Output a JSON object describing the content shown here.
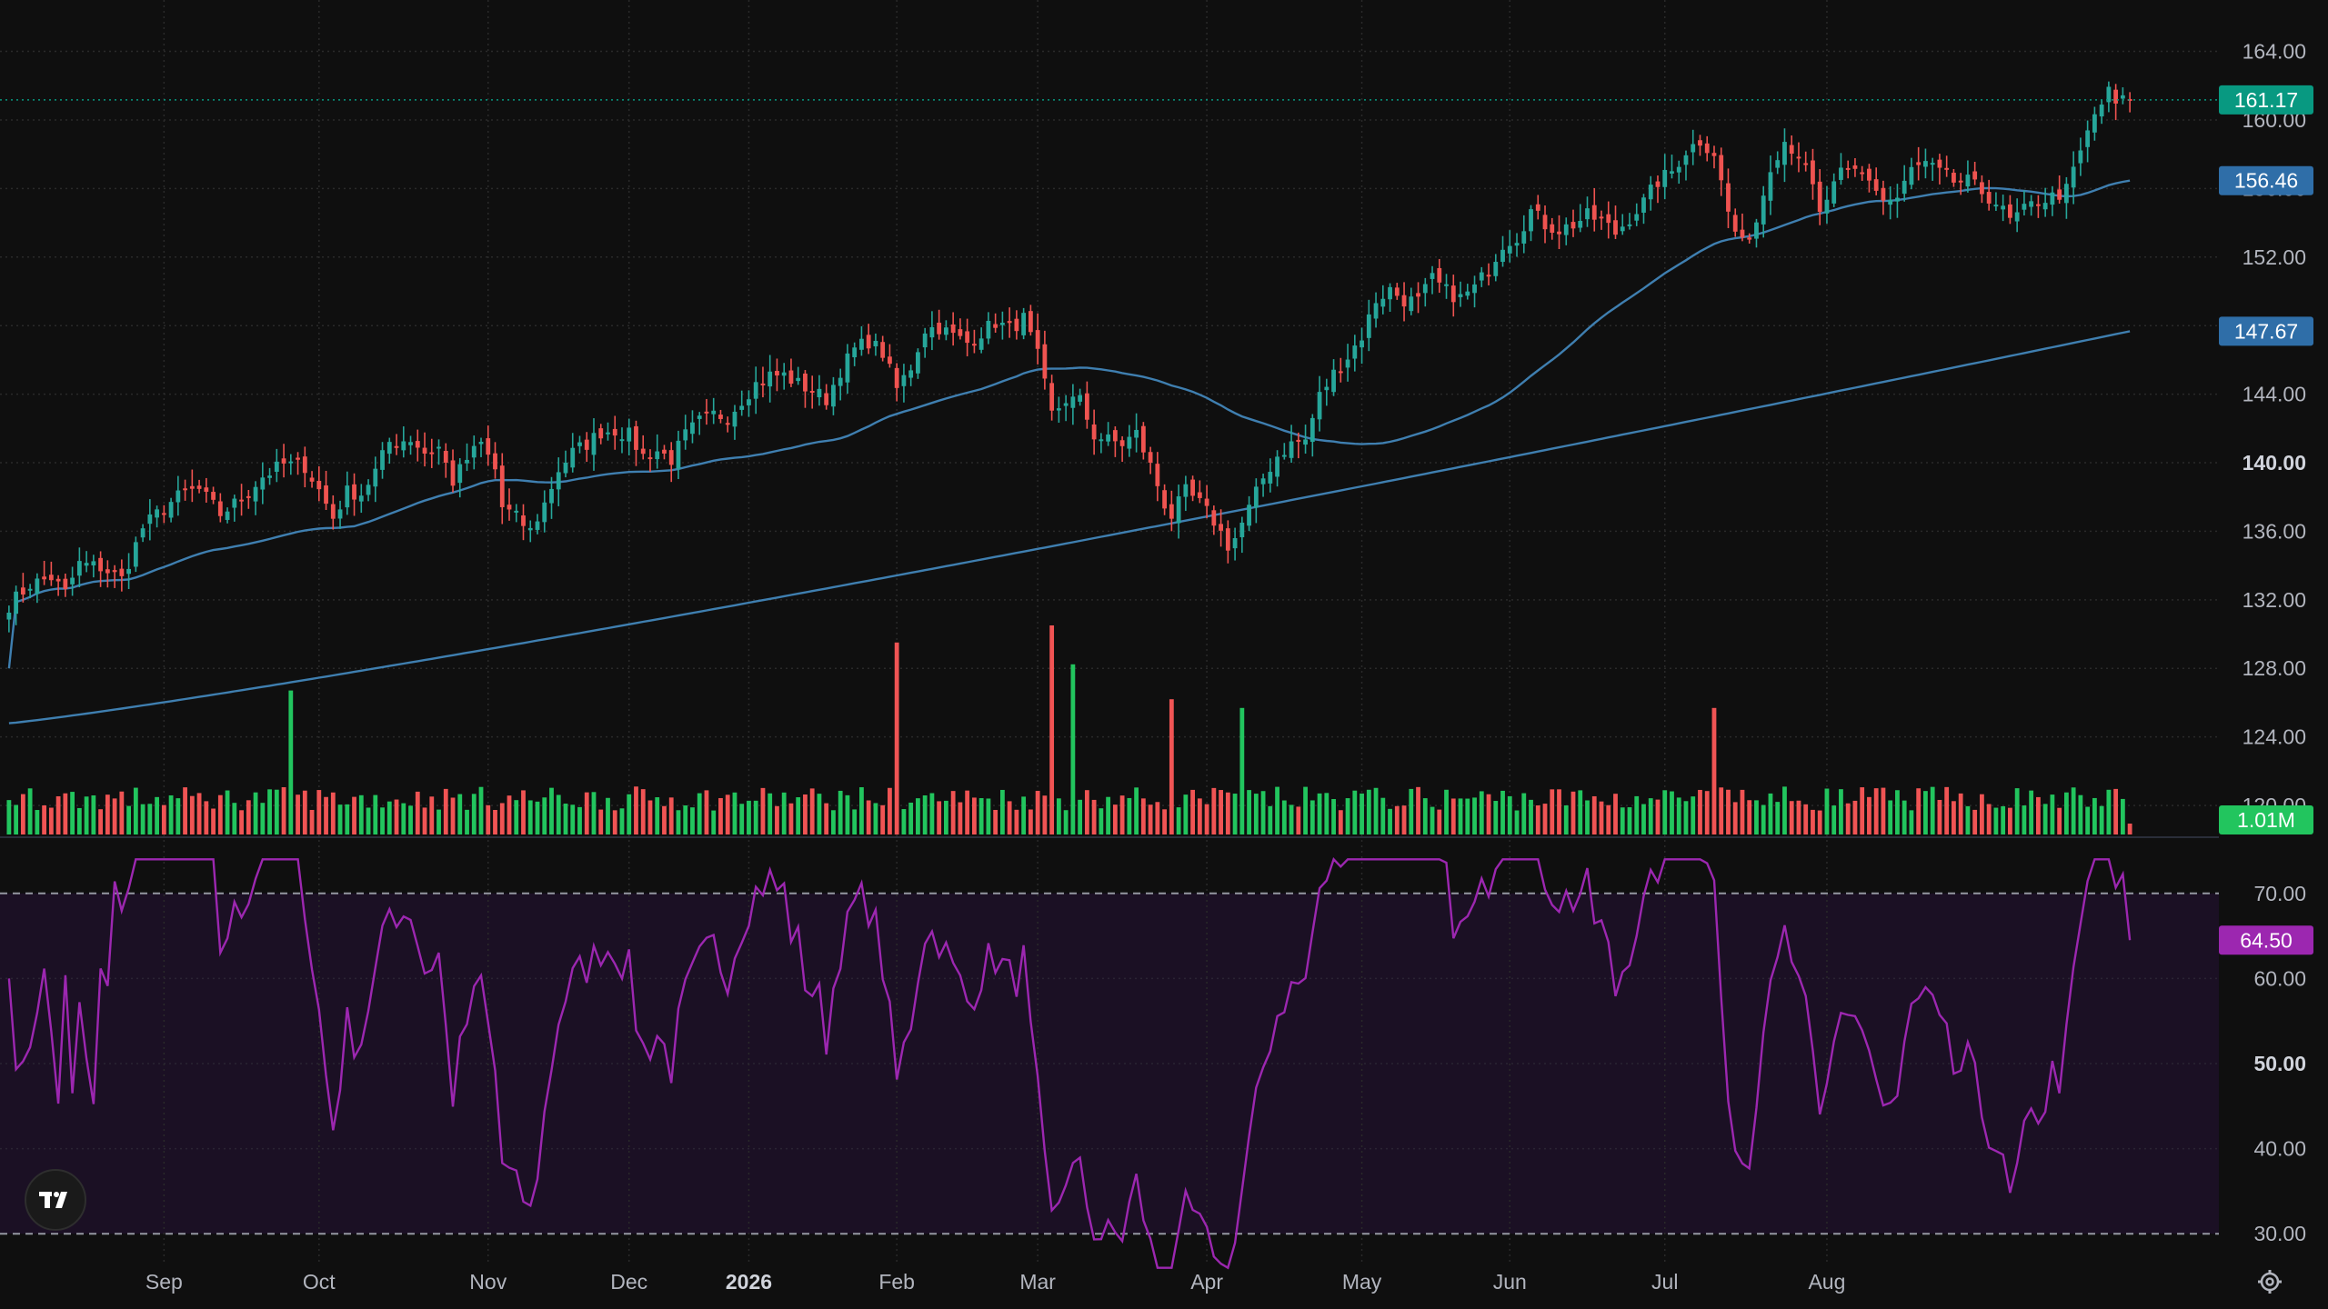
{
  "colors": {
    "background": "#0f0f0f",
    "grid": "#2a2a2a",
    "up": "#26a69a",
    "down": "#ef5350",
    "vol_up": "#22c55e",
    "vol_down": "#f05454",
    "ma": "#3f7fb0",
    "rsi_line": "#9c27b0",
    "rsi_band": "#1b1024",
    "last_price_tag": "#089981",
    "ma_tag": "#2f6ea8",
    "vol_tag": "#22c55e",
    "rsi_tag": "#9c27b0"
  },
  "logo": {
    "text": "TV",
    "icon": "tradingview-logo-icon"
  },
  "settings": {
    "icon": "gear-icon"
  },
  "chart_data": [
    {
      "type": "candlestick",
      "title": "",
      "x_tick_labels": [
        "Sep",
        "Oct",
        "Nov",
        "Dec",
        "2026",
        "Feb",
        "Mar",
        "Apr",
        "May",
        "Jun",
        "Jul",
        "Aug"
      ],
      "x_tick_index": [
        22,
        44,
        68,
        88,
        105,
        126,
        146,
        170,
        192,
        213,
        235,
        258
      ],
      "y_tick_labels": [
        "164.00",
        "160.00",
        "156.00",
        "152.00",
        "148.00",
        "144.00",
        "140.00",
        "136.00",
        "132.00",
        "128.00",
        "124.00",
        "120.00"
      ],
      "y_tick_values": [
        164,
        160,
        156,
        152,
        148,
        144,
        140,
        136,
        132,
        128,
        124,
        120
      ],
      "ylim": [
        118.2,
        167.0
      ],
      "last_price": 161.17,
      "last_price_label": "161.17",
      "ma50_last": 156.46,
      "ma50_label": "156.46",
      "ma200_last": 147.67,
      "ma200_label": "147.67",
      "grid": true,
      "series_desc": "daily candles, ~1 year",
      "anchors": [
        [
          0,
          131.7
        ],
        [
          3,
          132.9
        ],
        [
          6,
          133.3
        ],
        [
          8,
          132.4
        ],
        [
          10,
          134.1
        ],
        [
          13,
          133.9
        ],
        [
          16,
          133.2
        ],
        [
          19,
          136.2
        ],
        [
          22,
          137.4
        ],
        [
          25,
          138.3
        ],
        [
          27,
          138.4
        ],
        [
          30,
          137.0
        ],
        [
          33,
          137.9
        ],
        [
          36,
          139.2
        ],
        [
          39,
          139.9
        ],
        [
          42,
          139.8
        ],
        [
          44,
          138.4
        ],
        [
          46,
          136.8
        ],
        [
          48,
          138.3
        ],
        [
          50,
          138.2
        ],
        [
          52,
          139.5
        ],
        [
          54,
          141.2
        ],
        [
          57,
          141.4
        ],
        [
          59,
          140.6
        ],
        [
          61,
          140.9
        ],
        [
          63,
          138.9
        ],
        [
          65,
          140.2
        ],
        [
          67,
          141.1
        ],
        [
          69,
          139.6
        ],
        [
          70,
          137.4
        ],
        [
          72,
          136.8
        ],
        [
          74,
          136.0
        ],
        [
          76,
          137.6
        ],
        [
          78,
          139.6
        ],
        [
          80,
          140.6
        ],
        [
          82,
          141.1
        ],
        [
          84,
          141.8
        ],
        [
          86,
          141.9
        ],
        [
          88,
          141.6
        ],
        [
          90,
          140.4
        ],
        [
          92,
          140.7
        ],
        [
          94,
          140.2
        ],
        [
          96,
          141.6
        ],
        [
          98,
          142.4
        ],
        [
          100,
          142.8
        ],
        [
          102,
          142.7
        ],
        [
          104,
          143.7
        ],
        [
          106,
          144.6
        ],
        [
          108,
          145.1
        ],
        [
          110,
          145.1
        ],
        [
          112,
          144.6
        ],
        [
          114,
          144.2
        ],
        [
          116,
          143.7
        ],
        [
          118,
          145.4
        ],
        [
          120,
          146.6
        ],
        [
          122,
          147.1
        ],
        [
          124,
          146.4
        ],
        [
          126,
          144.3
        ],
        [
          128,
          145.6
        ],
        [
          130,
          147.8
        ],
        [
          132,
          147.9
        ],
        [
          134,
          147.4
        ],
        [
          136,
          147.0
        ],
        [
          138,
          147.6
        ],
        [
          140,
          148.2
        ],
        [
          142,
          147.8
        ],
        [
          144,
          148.4
        ],
        [
          146,
          146.2
        ],
        [
          148,
          142.8
        ],
        [
          150,
          143.7
        ],
        [
          152,
          143.6
        ],
        [
          154,
          141.6
        ],
        [
          156,
          141.3
        ],
        [
          158,
          141.1
        ],
        [
          160,
          141.7
        ],
        [
          162,
          139.8
        ],
        [
          164,
          137.6
        ],
        [
          165,
          136.9
        ],
        [
          167,
          138.3
        ],
        [
          169,
          137.6
        ],
        [
          171,
          136.6
        ],
        [
          173,
          135.2
        ],
        [
          174,
          135.6
        ],
        [
          176,
          137.3
        ],
        [
          178,
          139.1
        ],
        [
          180,
          140.4
        ],
        [
          182,
          141.1
        ],
        [
          184,
          141.3
        ],
        [
          186,
          143.9
        ],
        [
          188,
          145.2
        ],
        [
          190,
          146.2
        ],
        [
          192,
          147.4
        ],
        [
          194,
          149.5
        ],
        [
          196,
          150.1
        ],
        [
          198,
          149.5
        ],
        [
          200,
          149.4
        ],
        [
          202,
          150.7
        ],
        [
          204,
          150.0
        ],
        [
          206,
          149.6
        ],
        [
          208,
          150.2
        ],
        [
          210,
          151.3
        ],
        [
          212,
          152.8
        ],
        [
          214,
          153.2
        ],
        [
          216,
          154.7
        ],
        [
          218,
          153.9
        ],
        [
          220,
          153.6
        ],
        [
          222,
          153.9
        ],
        [
          224,
          154.4
        ],
        [
          226,
          154.1
        ],
        [
          228,
          153.4
        ],
        [
          230,
          154.3
        ],
        [
          232,
          155.2
        ],
        [
          234,
          156.4
        ],
        [
          236,
          157.0
        ],
        [
          238,
          158.2
        ],
        [
          240,
          158.8
        ],
        [
          242,
          158.1
        ],
        [
          244,
          154.6
        ],
        [
          245,
          153.5
        ],
        [
          246,
          152.7
        ],
        [
          248,
          154.1
        ],
        [
          250,
          157.4
        ],
        [
          252,
          158.8
        ],
        [
          254,
          158.0
        ],
        [
          256,
          156.0
        ],
        [
          257,
          154.4
        ],
        [
          258,
          155.4
        ],
        [
          260,
          156.8
        ],
        [
          262,
          157.0
        ],
        [
          264,
          156.6
        ],
        [
          266,
          155.3
        ],
        [
          268,
          155.4
        ],
        [
          270,
          157.1
        ],
        [
          272,
          157.4
        ],
        [
          274,
          156.9
        ],
        [
          276,
          156.4
        ],
        [
          278,
          156.4
        ],
        [
          280,
          155.8
        ],
        [
          282,
          155.2
        ],
        [
          284,
          154.1
        ],
        [
          286,
          154.7
        ],
        [
          288,
          155.3
        ],
        [
          290,
          155.5
        ],
        [
          292,
          155.9
        ],
        [
          294,
          158.1
        ],
        [
          296,
          160.3
        ],
        [
          298,
          161.6
        ],
        [
          299,
          160.9
        ],
        [
          300,
          161.1
        ],
        [
          301,
          161.2
        ]
      ]
    },
    {
      "type": "bar",
      "title": "",
      "label": "Volume",
      "last_value_label": "1.01M",
      "values_desc": "daily volume bars colored by candle direction",
      "spikes": [
        [
          40,
          3.3
        ],
        [
          126,
          4.4
        ],
        [
          148,
          4.8
        ],
        [
          151,
          3.9
        ],
        [
          165,
          3.1
        ],
        [
          175,
          2.9
        ],
        [
          242,
          2.9
        ]
      ]
    },
    {
      "type": "line",
      "title": "",
      "label": "RSI",
      "y_tick_labels": [
        "70.00",
        "60.00",
        "50.00",
        "40.00",
        "30.00"
      ],
      "y_tick_values": [
        70,
        60,
        50,
        40,
        30
      ],
      "ylim": [
        26.5,
        73.5
      ],
      "band": [
        30,
        70
      ],
      "last_value": 64.5,
      "last_value_label": "64.50"
    }
  ]
}
